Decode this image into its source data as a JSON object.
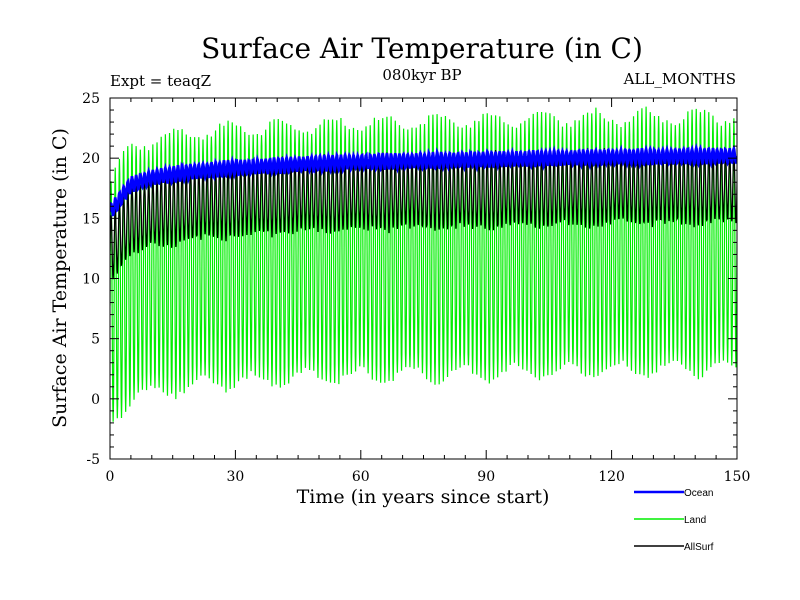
{
  "chart_data": {
    "type": "line",
    "title": "Surface Air Temperature (in C)",
    "subtitle": "080kyr BP",
    "left_note": "Expt = teaqZ",
    "right_note": "ALL_MONTHS",
    "xlabel": "Time (in years since start)",
    "ylabel": "Surface Air Temperature (in C)",
    "xlim": [
      0,
      150
    ],
    "ylim": [
      -5,
      25
    ],
    "x_ticks": [
      0,
      30,
      60,
      90,
      120,
      150
    ],
    "y_ticks": [
      -5,
      0,
      5,
      10,
      15,
      20,
      25
    ],
    "x_tick_labels": [
      "0",
      "30",
      "60",
      "90",
      "120",
      "150"
    ],
    "y_tick_labels": [
      "-5",
      "0",
      "5",
      "10",
      "15",
      "20",
      "25"
    ],
    "grid": false,
    "legend_position": "bottom-right",
    "series": [
      {
        "name": "Ocean",
        "color": "#0000ff",
        "description": "monthly ocean mean, small seasonal cycle",
        "years": [
          0,
          5,
          10,
          20,
          30,
          45,
          60,
          90,
          120,
          150
        ],
        "annual_mean": [
          15.5,
          17.8,
          18.4,
          18.9,
          19.2,
          19.5,
          19.7,
          19.9,
          20.1,
          20.2
        ],
        "seasonal_amplitude": [
          0.6,
          0.6,
          0.6,
          0.6,
          0.6,
          0.6,
          0.6,
          0.6,
          0.6,
          0.6
        ]
      },
      {
        "name": "Land",
        "color": "#00ee00",
        "description": "monthly land mean, large seasonal cycle",
        "years": [
          0,
          5,
          10,
          20,
          30,
          45,
          60,
          90,
          120,
          150
        ],
        "annual_mean": [
          8.0,
          10.5,
          11.0,
          11.6,
          11.9,
          12.2,
          12.4,
          12.6,
          12.9,
          13.0
        ],
        "seasonal_amplitude": [
          10.0,
          10.5,
          10.5,
          10.5,
          10.5,
          10.5,
          10.5,
          10.5,
          10.5,
          10.5
        ]
      },
      {
        "name": "AllSurf",
        "color": "#000000",
        "description": "monthly all-surface mean",
        "years": [
          0,
          5,
          10,
          20,
          30,
          45,
          60,
          90,
          120,
          150
        ],
        "annual_mean": [
          12.5,
          14.8,
          15.5,
          16.2,
          16.6,
          16.9,
          17.1,
          17.3,
          17.6,
          17.7
        ],
        "seasonal_amplitude": [
          2.6,
          2.8,
          2.9,
          3.0,
          3.0,
          3.0,
          3.0,
          3.0,
          3.0,
          3.0
        ]
      }
    ]
  }
}
